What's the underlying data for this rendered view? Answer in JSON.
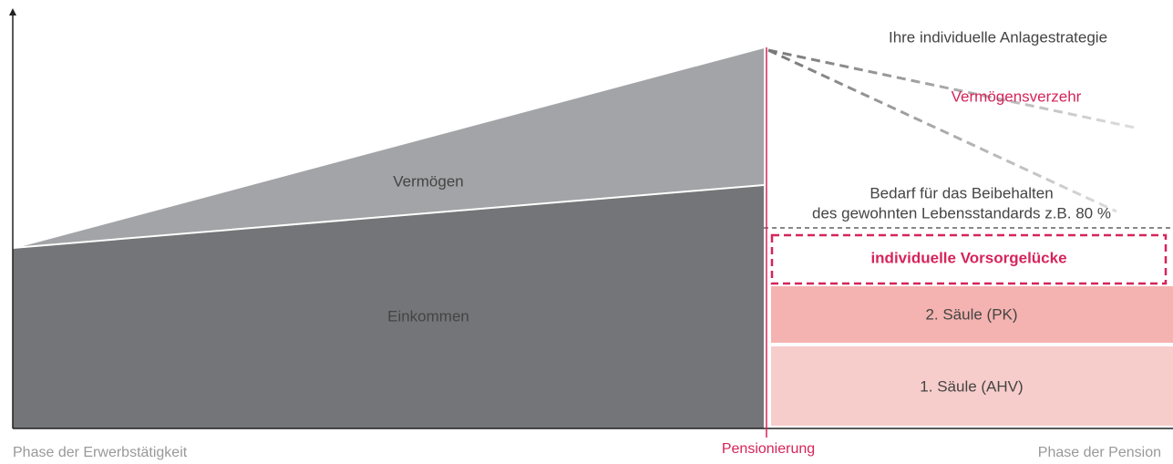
{
  "areas": {
    "income": "Einkommen",
    "wealth": "Vermögen"
  },
  "strategy": "Ihre individuelle Anlagestrategie",
  "consumption": "Vermögensverzehr",
  "need": {
    "line1": "Bedarf für das Beibehalten",
    "line2": "des gewohnten Lebensstandards z.B. 80 %"
  },
  "pillars": {
    "gap": "individuelle Vorsorgelücke",
    "second": "2. Säule (PK)",
    "first": "1. Säule (AHV)"
  },
  "axis": {
    "left": "Phase der Erwerbstätigkeit",
    "middle": "Pensionierung",
    "right": "Phase der Pension"
  }
}
